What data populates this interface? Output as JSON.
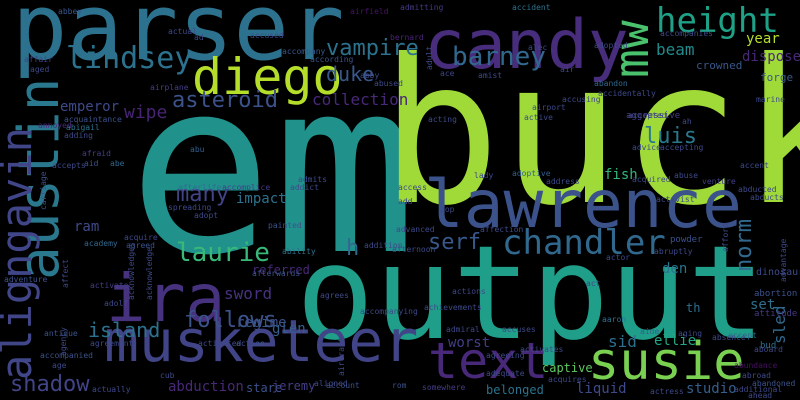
{
  "words": [
    {
      "text": "em",
      "color": "#21918c"
    },
    {
      "text": "buck",
      "color": "#a0da39"
    },
    {
      "text": "output",
      "color": "#1f9e89"
    },
    {
      "text": "parser",
      "color": "#2c728e"
    },
    {
      "text": "lawrence",
      "color": "#3b528b"
    },
    {
      "text": "musketeer",
      "color": "#414487"
    },
    {
      "text": "candy",
      "color": "#472d7b"
    },
    {
      "text": "diego",
      "color": "#b5de2b"
    },
    {
      "text": "austin",
      "color": "#2a788e"
    },
    {
      "text": "alignGavin",
      "color": "#404688"
    },
    {
      "text": "ira",
      "color": "#46327e"
    },
    {
      "text": "text",
      "color": "#482878"
    },
    {
      "text": "susie",
      "color": "#7ad151"
    },
    {
      "text": "chandler",
      "color": "#31688e"
    },
    {
      "text": "height",
      "color": "#1fa187"
    },
    {
      "text": "mw",
      "color": "#4ac16d"
    },
    {
      "text": "lindsey",
      "color": "#2c728e"
    },
    {
      "text": "barney",
      "color": "#31688e"
    },
    {
      "text": "asteroid",
      "color": "#3b528b"
    },
    {
      "text": "vampire",
      "color": "#2c728e"
    },
    {
      "text": "duke",
      "color": "#38588c"
    },
    {
      "text": "laurie",
      "color": "#38b977"
    },
    {
      "text": "luis",
      "color": "#2a788e"
    },
    {
      "text": "serf",
      "color": "#38588c"
    },
    {
      "text": "norm",
      "color": "#31688e"
    },
    {
      "text": "many",
      "color": "#414487"
    },
    {
      "text": "follows",
      "color": "#3b528b"
    },
    {
      "text": "island",
      "color": "#2c728e"
    },
    {
      "text": "shadow",
      "color": "#414487"
    },
    {
      "text": "sword",
      "color": "#46327e"
    },
    {
      "text": "wipe",
      "color": "#482475"
    },
    {
      "text": "emperor",
      "color": "#3e4989"
    },
    {
      "text": "collection",
      "color": "#482878"
    },
    {
      "text": "beam",
      "color": "#228c8d"
    },
    {
      "text": "year",
      "color": "#b5de2b"
    },
    {
      "text": "dispose",
      "color": "#482878"
    },
    {
      "text": "fish",
      "color": "#32b67a"
    },
    {
      "text": "sid",
      "color": "#2e6f8e"
    },
    {
      "text": "ellie",
      "color": "#22a785"
    },
    {
      "text": "worst",
      "color": "#433e85"
    },
    {
      "text": "sled",
      "color": "#31688e"
    },
    {
      "text": "set",
      "color": "#2e6f8e"
    },
    {
      "text": "glen",
      "color": "#355f8d"
    },
    {
      "text": "h",
      "color": "#31688e"
    },
    {
      "text": "ram",
      "color": "#3e4989"
    },
    {
      "text": "impact",
      "color": "#2c728e"
    },
    {
      "text": "regime",
      "color": "#3b528b"
    },
    {
      "text": "abduction",
      "color": "#482878"
    },
    {
      "text": "stare",
      "color": "#3b528b"
    },
    {
      "text": "jeremy",
      "color": "#433e85"
    },
    {
      "text": "belonged",
      "color": "#2c728e"
    },
    {
      "text": "liquid",
      "color": "#3e4989"
    },
    {
      "text": "studio",
      "color": "#355f8d"
    },
    {
      "text": "captive",
      "color": "#5ec962"
    },
    {
      "text": "den",
      "color": "#2c728e"
    },
    {
      "text": "th",
      "color": "#2e6f8e"
    },
    {
      "text": "referred",
      "color": "#482878"
    },
    {
      "text": "crowned",
      "color": "#38588c"
    },
    {
      "text": "forge",
      "color": "#38588c"
    },
    {
      "text": "dinosaur",
      "color": "#3e4989"
    },
    {
      "text": "abortion",
      "color": "#3b528b"
    },
    {
      "text": "attitude",
      "color": "#443983"
    },
    {
      "text": "bud",
      "color": "#2e6f8e"
    },
    {
      "text": "powder",
      "color": "#3b528b"
    },
    {
      "text": "aggressive",
      "color": "#433e85"
    },
    {
      "text": "accept",
      "color": "#31688e"
    },
    {
      "text": "abundance",
      "color": "#471063"
    },
    {
      "text": "aide",
      "color": "#355f8d"
    },
    {
      "text": "aaron",
      "color": "#2c728e"
    },
    {
      "text": "absence",
      "color": "#3e4989"
    },
    {
      "text": "venture",
      "color": "#433e85"
    },
    {
      "text": "accidentally",
      "color": "#3e4989"
    },
    {
      "text": "abandon",
      "color": "#31688e"
    },
    {
      "text": "accident",
      "color": "#2c728e"
    },
    {
      "text": "adoptive",
      "color": "#355f8d"
    },
    {
      "text": "admitting",
      "color": "#443983"
    },
    {
      "text": "air",
      "color": "#414487"
    },
    {
      "text": "bernard",
      "color": "#482475"
    },
    {
      "text": "accused",
      "color": "#3e4989"
    },
    {
      "text": "airfield",
      "color": "#471365"
    },
    {
      "text": "according",
      "color": "#3b528b"
    },
    {
      "text": "accompany",
      "color": "#38588c"
    },
    {
      "text": "abby",
      "color": "#3e4989"
    },
    {
      "text": "abused",
      "color": "#3e4989"
    },
    {
      "text": "acquaintance",
      "color": "#3b528b"
    },
    {
      "text": "airplane",
      "color": "#433e85"
    },
    {
      "text": "aged",
      "color": "#3e4989"
    },
    {
      "text": "affair",
      "color": "#414487"
    },
    {
      "text": "abbey",
      "color": "#38588c"
    },
    {
      "text": "actual",
      "color": "#3e4989"
    },
    {
      "text": "annoyed",
      "color": "#482878"
    },
    {
      "text": "abigail",
      "color": "#2c728e"
    },
    {
      "text": "adding",
      "color": "#3e4989"
    },
    {
      "text": "afraid",
      "color": "#433e85"
    },
    {
      "text": "aid",
      "color": "#3b528b"
    },
    {
      "text": "abe",
      "color": "#31688e"
    },
    {
      "text": "accepts",
      "color": "#3e4989"
    },
    {
      "text": "carriage",
      "color": "#3b528b"
    },
    {
      "text": "abu",
      "color": "#355f8d"
    },
    {
      "text": "afterlife",
      "color": "#2e6f8e"
    },
    {
      "text": "accomplice",
      "color": "#433e85"
    },
    {
      "text": "spreading",
      "color": "#3e4989"
    },
    {
      "text": "adopt",
      "color": "#3e4989"
    },
    {
      "text": "painted",
      "color": "#3b528b"
    },
    {
      "text": "academy",
      "color": "#31688e"
    },
    {
      "text": "acquire",
      "color": "#3e4989"
    },
    {
      "text": "agreed",
      "color": "#3b528b"
    },
    {
      "text": "adventure",
      "color": "#3b528b"
    },
    {
      "text": "affect",
      "color": "#3e4989"
    },
    {
      "text": "activate",
      "color": "#433e85"
    },
    {
      "text": "afterwards",
      "color": "#3b528b"
    },
    {
      "text": "ability",
      "color": "#2c728e"
    },
    {
      "text": "antique",
      "color": "#3b528b"
    },
    {
      "text": "agreement",
      "color": "#3e4989"
    },
    {
      "text": "action",
      "color": "#3b528b"
    },
    {
      "text": "activated",
      "color": "#3e4989"
    },
    {
      "text": "accompanied",
      "color": "#3b528b"
    },
    {
      "text": "age",
      "color": "#3e4989"
    },
    {
      "text": "cub",
      "color": "#3e4989"
    },
    {
      "text": "actually",
      "color": "#3e4989"
    },
    {
      "text": "account",
      "color": "#3b528b"
    },
    {
      "text": "rom",
      "color": "#3b528b"
    },
    {
      "text": "somewhere",
      "color": "#433e85"
    },
    {
      "text": "adequate",
      "color": "#3e4989"
    },
    {
      "text": "activates",
      "color": "#3e4989"
    },
    {
      "text": "agreeing",
      "color": "#3e4989"
    },
    {
      "text": "acquires",
      "color": "#3e4989"
    },
    {
      "text": "actress",
      "color": "#3e4989"
    },
    {
      "text": "abroad",
      "color": "#3e4989"
    },
    {
      "text": "abandoned",
      "color": "#3b528b"
    },
    {
      "text": "additional",
      "color": "#3e4989"
    },
    {
      "text": "ahead",
      "color": "#3e4989"
    },
    {
      "text": "accuses",
      "color": "#3e4989"
    },
    {
      "text": "admiral",
      "color": "#3e4989"
    },
    {
      "text": "addition",
      "color": "#3e4989"
    },
    {
      "text": "afternoon",
      "color": "#3e4989"
    },
    {
      "text": "advanced",
      "color": "#3e4989"
    },
    {
      "text": "affection",
      "color": "#3e4989"
    },
    {
      "text": "address",
      "color": "#3e4989"
    },
    {
      "text": "airport",
      "color": "#3e4989"
    },
    {
      "text": "acting",
      "color": "#3e4989"
    },
    {
      "text": "active",
      "color": "#3e4989"
    },
    {
      "text": "accusing",
      "color": "#3e4989"
    },
    {
      "text": "accepted",
      "color": "#3e4989"
    },
    {
      "text": "advice",
      "color": "#3e4989"
    },
    {
      "text": "accepting",
      "color": "#3e4989"
    },
    {
      "text": "abuse",
      "color": "#3e4989"
    },
    {
      "text": "acquired",
      "color": "#3e4989"
    },
    {
      "text": "accent",
      "color": "#3e4989"
    },
    {
      "text": "abruptly",
      "color": "#3e4989"
    },
    {
      "text": "abducted",
      "color": "#3e4989"
    },
    {
      "text": "abducts",
      "color": "#3e4989"
    },
    {
      "text": "actor",
      "color": "#3e4989"
    },
    {
      "text": "aging",
      "color": "#3e4989"
    },
    {
      "text": "afford",
      "color": "#3e4989"
    },
    {
      "text": "advantage",
      "color": "#3e4989"
    },
    {
      "text": "adult",
      "color": "#3e4989"
    },
    {
      "text": "ace",
      "color": "#3e4989"
    },
    {
      "text": "amist",
      "color": "#3e4989"
    },
    {
      "text": "ah",
      "color": "#3e4989"
    },
    {
      "text": "marine",
      "color": "#3e4989"
    },
    {
      "text": "accompanies",
      "color": "#3e4989"
    },
    {
      "text": "adopted",
      "color": "#3e4989"
    },
    {
      "text": "addict",
      "color": "#3e4989"
    },
    {
      "text": "admits",
      "color": "#3e4989"
    },
    {
      "text": "access",
      "color": "#3e4989"
    },
    {
      "text": "add",
      "color": "#3e4989"
    },
    {
      "text": "pop",
      "color": "#3e4989"
    },
    {
      "text": "aircraft",
      "color": "#3e4989"
    },
    {
      "text": "aligned",
      "color": "#3e4989"
    },
    {
      "text": "act",
      "color": "#3e4989"
    },
    {
      "text": "ad",
      "color": "#3e4989"
    },
    {
      "text": "acknowledges",
      "color": "#3e4989"
    },
    {
      "text": "acknowledge",
      "color": "#3e4989"
    },
    {
      "text": "adolf",
      "color": "#3e4989"
    },
    {
      "text": "agency",
      "color": "#3e4989"
    },
    {
      "text": "aboard",
      "color": "#3e4989"
    },
    {
      "text": "activist",
      "color": "#3e4989"
    },
    {
      "text": "alec",
      "color": "#3e4989"
    },
    {
      "text": "agrees",
      "color": "#3e4989"
    },
    {
      "text": "lady",
      "color": "#3e4989"
    },
    {
      "text": "accompanying",
      "color": "#3e4989"
    },
    {
      "text": "achievements",
      "color": "#3e4989"
    },
    {
      "text": "actions",
      "color": "#3e4989"
    },
    {
      "text": "accepting2",
      "color": "#3e4989"
    }
  ]
}
